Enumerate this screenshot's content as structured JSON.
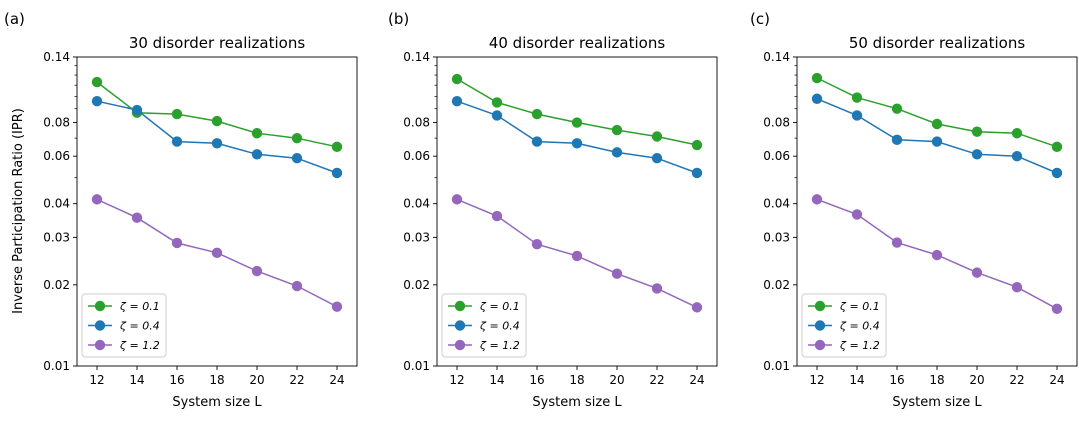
{
  "figure": {
    "ylabel": "Inverse Participation Ratio (IPR)"
  },
  "chart_data": [
    {
      "type": "line",
      "panel_label": "(a)",
      "title": "30 disorder realizations",
      "xlabel": "System size L",
      "ylabel": "Inverse Participation Ratio (IPR)",
      "yscale": "log",
      "ylim": [
        0.01,
        0.14
      ],
      "xlim": [
        11,
        25
      ],
      "x": [
        12,
        14,
        16,
        18,
        20,
        22,
        24
      ],
      "xticks": [
        "12",
        "14",
        "16",
        "18",
        "20",
        "22",
        "24"
      ],
      "yticks": [
        {
          "value": 0.01,
          "label": "0.01"
        },
        {
          "value": 0.02,
          "label": "0.02"
        },
        {
          "value": 0.03,
          "label": "0.03"
        },
        {
          "value": 0.04,
          "label": "0.04"
        },
        {
          "value": 0.06,
          "label": "0.06"
        },
        {
          "value": 0.08,
          "label": "0.08"
        },
        {
          "value": 0.14,
          "label": "0.14"
        }
      ],
      "legend_position": "lower-left",
      "series": [
        {
          "name": "ζ = 0.1",
          "color": "#2ca02c",
          "values": [
            0.113,
            0.087,
            0.086,
            0.081,
            0.073,
            0.07,
            0.065
          ]
        },
        {
          "name": "ζ = 0.4",
          "color": "#1f77b4",
          "values": [
            0.096,
            0.089,
            0.068,
            0.067,
            0.061,
            0.059,
            0.052
          ]
        },
        {
          "name": "ζ = 1.2",
          "color": "#9467bd",
          "values": [
            0.0415,
            0.0355,
            0.0286,
            0.0263,
            0.0225,
            0.0198,
            0.0166
          ]
        }
      ]
    },
    {
      "type": "line",
      "panel_label": "(b)",
      "title": "40 disorder realizations",
      "xlabel": "System size L",
      "ylabel": "Inverse Participation Ratio (IPR)",
      "yscale": "log",
      "ylim": [
        0.01,
        0.14
      ],
      "xlim": [
        11,
        25
      ],
      "x": [
        12,
        14,
        16,
        18,
        20,
        22,
        24
      ],
      "xticks": [
        "12",
        "14",
        "16",
        "18",
        "20",
        "22",
        "24"
      ],
      "yticks": [
        {
          "value": 0.01,
          "label": "0.01"
        },
        {
          "value": 0.02,
          "label": "0.02"
        },
        {
          "value": 0.03,
          "label": "0.03"
        },
        {
          "value": 0.04,
          "label": "0.04"
        },
        {
          "value": 0.06,
          "label": "0.06"
        },
        {
          "value": 0.08,
          "label": "0.08"
        },
        {
          "value": 0.14,
          "label": "0.14"
        }
      ],
      "legend_position": "lower-left",
      "series": [
        {
          "name": "ζ = 0.1",
          "color": "#2ca02c",
          "values": [
            0.116,
            0.095,
            0.086,
            0.08,
            0.075,
            0.071,
            0.066
          ]
        },
        {
          "name": "ζ = 0.4",
          "color": "#1f77b4",
          "values": [
            0.096,
            0.085,
            0.068,
            0.067,
            0.062,
            0.059,
            0.052
          ]
        },
        {
          "name": "ζ = 1.2",
          "color": "#9467bd",
          "values": [
            0.0415,
            0.036,
            0.0283,
            0.0256,
            0.022,
            0.0194,
            0.0165
          ]
        }
      ]
    },
    {
      "type": "line",
      "panel_label": "(c)",
      "title": "50 disorder realizations",
      "xlabel": "System size L",
      "ylabel": "Inverse Participation Ratio (IPR)",
      "yscale": "log",
      "ylim": [
        0.01,
        0.14
      ],
      "xlim": [
        11,
        25
      ],
      "x": [
        12,
        14,
        16,
        18,
        20,
        22,
        24
      ],
      "xticks": [
        "12",
        "14",
        "16",
        "18",
        "20",
        "22",
        "24"
      ],
      "yticks": [
        {
          "value": 0.01,
          "label": "0.01"
        },
        {
          "value": 0.02,
          "label": "0.02"
        },
        {
          "value": 0.03,
          "label": "0.03"
        },
        {
          "value": 0.04,
          "label": "0.04"
        },
        {
          "value": 0.06,
          "label": "0.06"
        },
        {
          "value": 0.08,
          "label": "0.08"
        },
        {
          "value": 0.14,
          "label": "0.14"
        }
      ],
      "legend_position": "lower-left",
      "series": [
        {
          "name": "ζ = 0.1",
          "color": "#2ca02c",
          "values": [
            0.117,
            0.099,
            0.09,
            0.079,
            0.074,
            0.073,
            0.065
          ]
        },
        {
          "name": "ζ = 0.4",
          "color": "#1f77b4",
          "values": [
            0.098,
            0.085,
            0.069,
            0.068,
            0.061,
            0.06,
            0.052
          ]
        },
        {
          "name": "ζ = 1.2",
          "color": "#9467bd",
          "values": [
            0.0415,
            0.0365,
            0.0287,
            0.0258,
            0.0222,
            0.0196,
            0.0163
          ]
        }
      ]
    }
  ]
}
